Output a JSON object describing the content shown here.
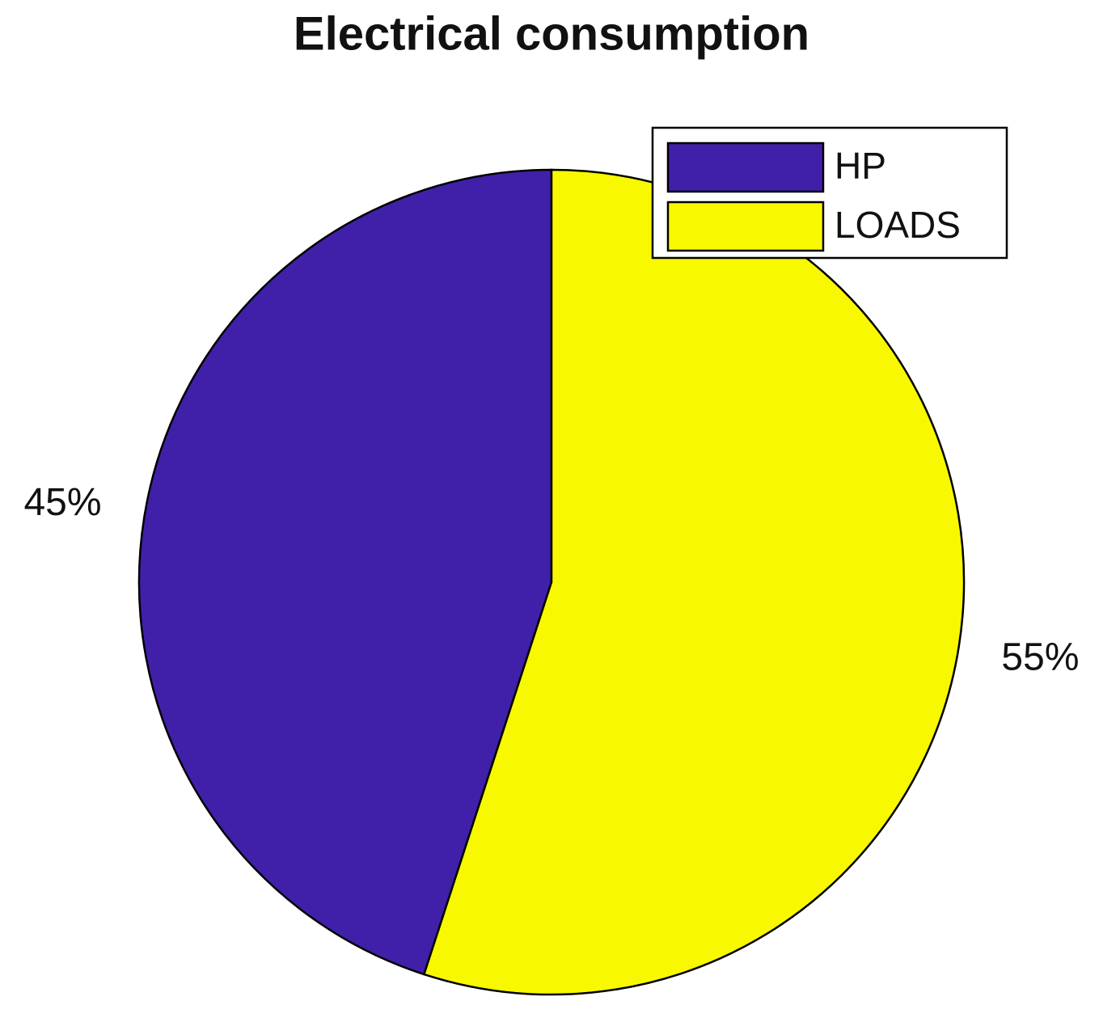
{
  "chart_data": {
    "type": "pie",
    "title": "Electrical consumption",
    "categories": [
      "HP",
      "LOADS"
    ],
    "values": [
      45,
      55
    ],
    "value_labels": [
      "45%",
      "55%"
    ],
    "colors": [
      "#4020a8",
      "#f8f800"
    ],
    "legend": "top-right"
  }
}
